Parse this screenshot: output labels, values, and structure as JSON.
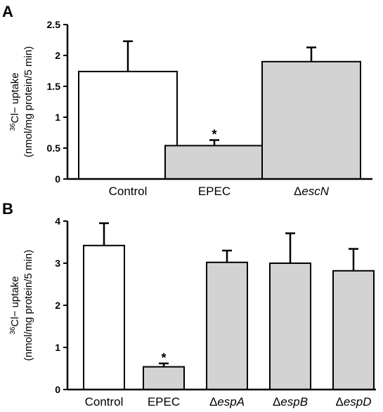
{
  "chart_data": [
    {
      "type": "bar",
      "panel_label": "A",
      "categories": [
        "Control",
        "EPEC",
        "ΔescN"
      ],
      "values": [
        1.74,
        0.54,
        1.9
      ],
      "error_bars": [
        0.49,
        0.09,
        0.23
      ],
      "significance": [
        "",
        "*",
        ""
      ],
      "bar_colors": [
        "#ffffff",
        "#d3d3d3",
        "#d3d3d3"
      ],
      "ylabel_sup": "36",
      "ylabel_line1": "Cl− uptake",
      "ylabel_line2": "(nmol/mg protein/5 min)",
      "ylim": [
        0,
        2.5
      ],
      "yticks": [
        "0",
        "0.5",
        "1",
        "1.5",
        "2",
        "2.5"
      ],
      "ytick_values": [
        0,
        0.5,
        1,
        1.5,
        2,
        2.5
      ],
      "grid": false
    },
    {
      "type": "bar",
      "panel_label": "B",
      "categories": [
        "Control",
        "EPEC",
        "ΔespA",
        "ΔespB",
        "ΔespD"
      ],
      "values": [
        3.42,
        0.54,
        3.02,
        3.0,
        2.82
      ],
      "error_bars": [
        0.53,
        0.08,
        0.28,
        0.71,
        0.52
      ],
      "significance": [
        "",
        "*",
        "",
        "",
        ""
      ],
      "bar_colors": [
        "#ffffff",
        "#d3d3d3",
        "#d3d3d3",
        "#d3d3d3",
        "#d3d3d3"
      ],
      "ylabel_sup": "36",
      "ylabel_line1": "Cl− uptake",
      "ylabel_line2": "(nmol/mg protein/5 min)",
      "ylim": [
        0,
        4
      ],
      "yticks": [
        "0",
        "1",
        "2",
        "3",
        "4"
      ],
      "ytick_values": [
        0,
        1,
        2,
        3,
        4
      ],
      "grid": false
    }
  ]
}
